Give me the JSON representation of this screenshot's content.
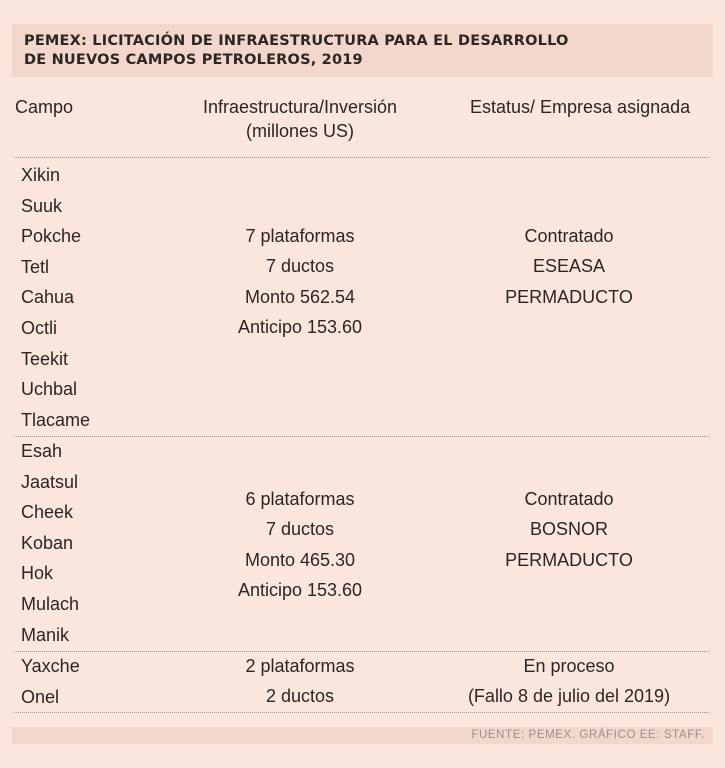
{
  "title": {
    "line1": "PEMEX: LICITACIÓN DE INFRAESTRUCTURA PARA EL DESARROLLO",
    "line2": "DE NUEVOS CAMPOS PETROLEROS, 2019"
  },
  "headers": {
    "campo": "Campo",
    "inversion_line1": "Infraestructura/Inversión",
    "inversion_line2": "(millones US)",
    "status": "Estatus/ Empresa asignada"
  },
  "groups": [
    {
      "fields": [
        "Xikin",
        "Suuk",
        "Pokche",
        "Tetl",
        "Cahua",
        "Octli",
        "Teekit",
        "Uchbal",
        "Tlacame"
      ],
      "infrastructure": [
        "7 plataformas",
        "7 ductos",
        "Monto 562.54",
        "Anticipo 153.60"
      ],
      "status": [
        "Contratado",
        "ESEASA",
        "PERMADUCTO"
      ]
    },
    {
      "fields": [
        "Esah",
        "Jaatsul",
        "Cheek",
        "Koban",
        "Hok",
        "Mulach",
        "Manik"
      ],
      "infrastructure": [
        "6 plataformas",
        "7 ductos",
        "Monto 465.30",
        "Anticipo 153.60"
      ],
      "status": [
        "Contratado",
        "BOSNOR",
        "PERMADUCTO"
      ]
    },
    {
      "fields": [
        "Yaxche",
        "Onel"
      ],
      "infrastructure": [
        "2 plataformas",
        "2 ductos"
      ],
      "status": [
        "En proceso",
        "(Fallo 8 de julio del 2019)"
      ]
    }
  ],
  "source": "FUENTE: PEMEX. GRÁFICO EE: STAFF."
}
